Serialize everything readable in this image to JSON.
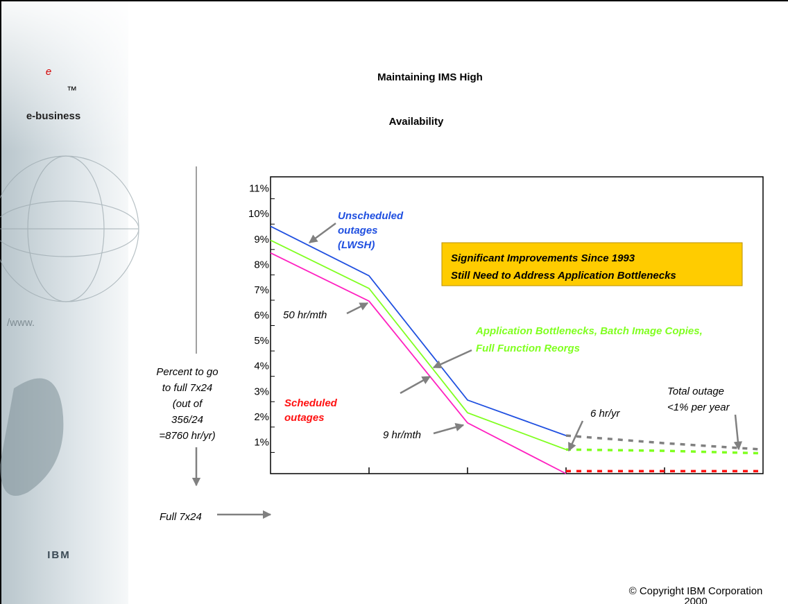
{
  "header": {
    "title_lines": [
      "Maintaining IMS High",
      "Availability"
    ]
  },
  "sidebar": {
    "logo": "e",
    "trademark": "™",
    "brand": "e-business",
    "company": "IBM"
  },
  "chart_data": {
    "type": "line",
    "x": [
      0,
      1,
      2,
      3,
      4,
      5
    ],
    "xlim": [
      0,
      5
    ],
    "xticks": [
      1,
      2,
      3,
      4
    ],
    "ylim": [
      0,
      11.7
    ],
    "yticks": [
      {
        "value": 1,
        "label": "1%"
      },
      {
        "value": 2,
        "label": "2%"
      },
      {
        "value": 3,
        "label": "3%"
      },
      {
        "value": 4,
        "label": "4%"
      },
      {
        "value": 5,
        "label": "5%"
      },
      {
        "value": 6,
        "label": "6%"
      },
      {
        "value": 7,
        "label": "7%"
      },
      {
        "value": 8,
        "label": "8%"
      },
      {
        "value": 9,
        "label": "9%"
      },
      {
        "value": 10,
        "label": "10%"
      },
      {
        "value": 11,
        "label": "11%"
      }
    ],
    "series": [
      {
        "color": "#1f4fe0",
        "dash": false,
        "values": [
          9.75,
          7.8,
          2.9,
          1.5,
          null,
          null
        ]
      },
      {
        "color": "#80ff20",
        "dash": false,
        "values": [
          9.2,
          7.3,
          2.4,
          0.95,
          null,
          null
        ]
      },
      {
        "color": "#ff20c0",
        "dash": false,
        "values": [
          8.7,
          6.8,
          2.0,
          0,
          null,
          null
        ]
      },
      {
        "color": "#808080",
        "dash": true,
        "values": [
          null,
          null,
          null,
          1.5,
          1.2,
          0.95
        ]
      },
      {
        "color": "#80ff20",
        "dash": true,
        "values": [
          null,
          null,
          null,
          0.95,
          0.9,
          0.8
        ]
      },
      {
        "color": "#ff1010",
        "dash": true,
        "values": [
          null,
          null,
          null,
          0.1,
          0.1,
          0.1
        ]
      }
    ],
    "annotations": {
      "unscheduled_label": [
        "Unscheduled",
        "outages",
        "(LWSH)"
      ],
      "scheduled_label": [
        "Scheduled",
        "outages"
      ],
      "application_label": [
        "Application Bottlenecks, Batch Image Copies,",
        "Full Function Reorgs"
      ],
      "highlight_box": [
        "Significant Improvements Since 1993",
        "Still Need to Address Application Bottlenecks"
      ],
      "callouts": [
        "50 hr/mth",
        "9 hr/mth",
        "6 hr/yr"
      ],
      "total_outage": [
        "Total outage",
        "<1% per year"
      ],
      "y_axis_label": [
        "Percent to go",
        "to full 7x24",
        "(out of",
        "356/24",
        "=8760 hr/yr)"
      ],
      "baseline_label": "Full 7x24"
    }
  },
  "footer": {
    "copyright_lines": [
      "© Copyright IBM Corporation",
      "2000"
    ]
  }
}
